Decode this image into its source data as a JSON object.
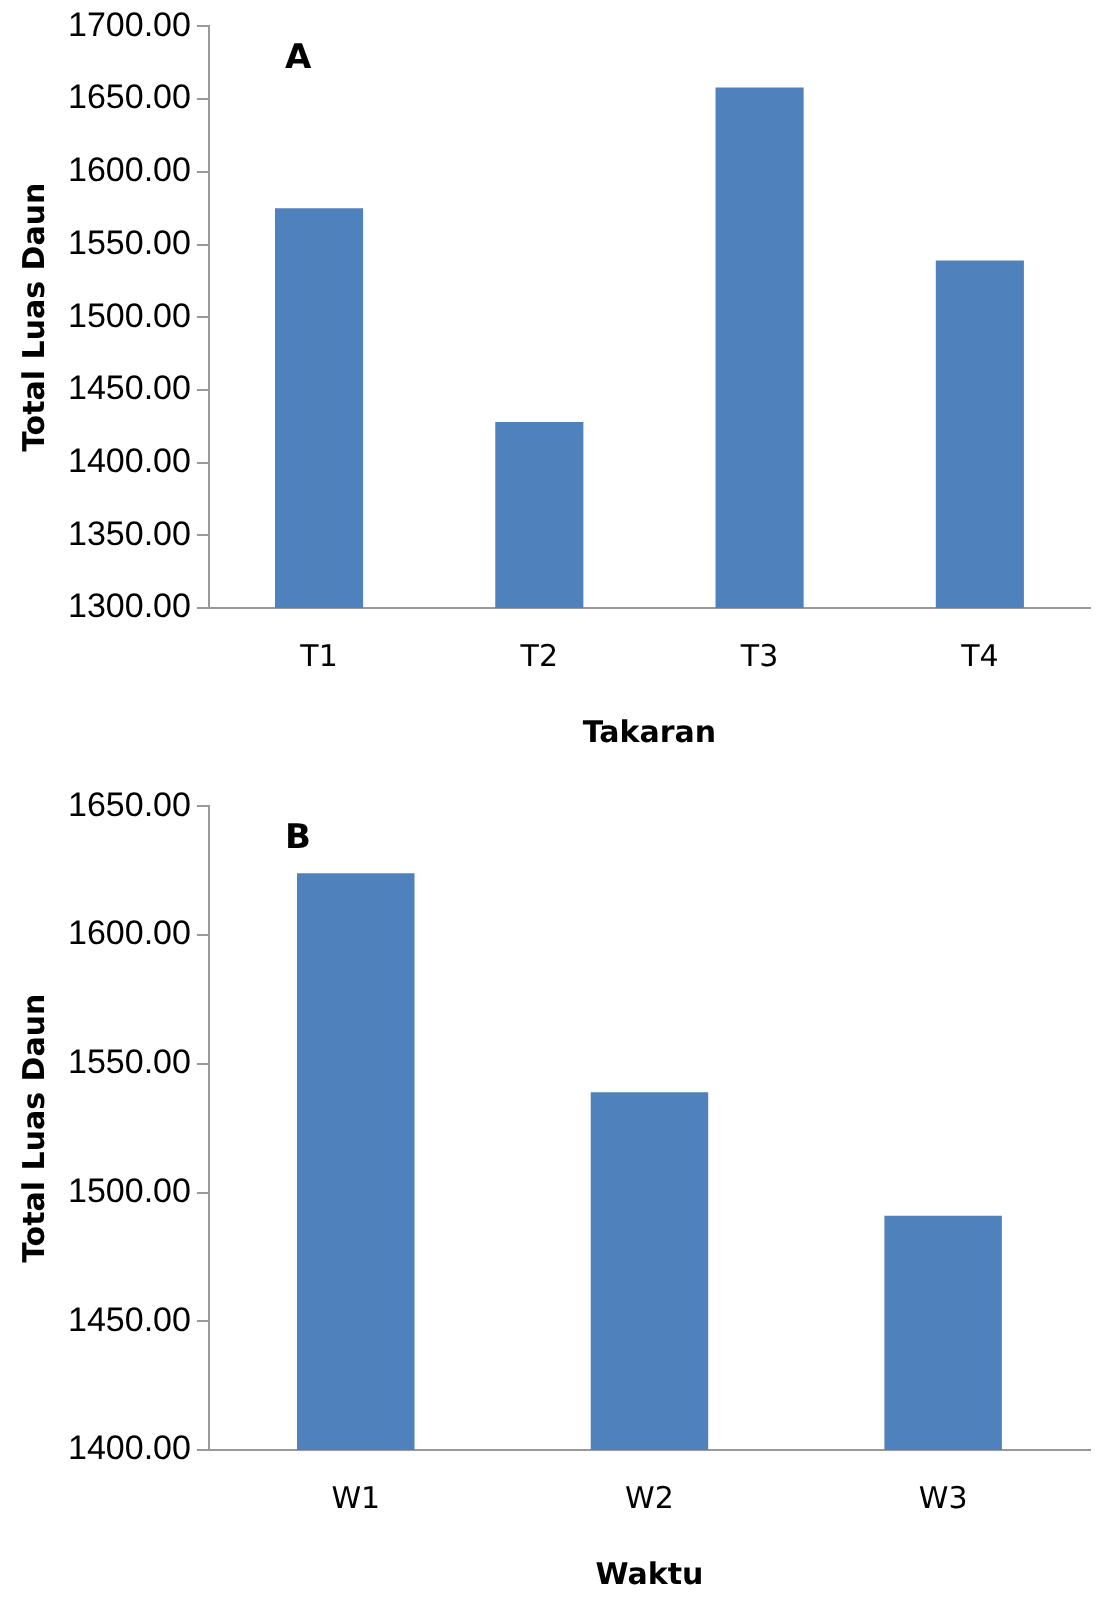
{
  "chart_data": [
    {
      "type": "bar",
      "annotations": [
        "A"
      ],
      "xlabel": "Takaran",
      "ylabel": "Total Luas Daun",
      "categories": [
        "T1",
        "T2",
        "T3",
        "T4"
      ],
      "values": [
        1575,
        1428,
        1658,
        1539
      ],
      "color": "#4f81bd",
      "ylim": [
        1300,
        1700
      ],
      "yticks": [
        {
          "value": 1300,
          "label": "1300.00"
        },
        {
          "value": 1350,
          "label": "1350.00"
        },
        {
          "value": 1400,
          "label": "1400.00"
        },
        {
          "value": 1450,
          "label": "1450.00"
        },
        {
          "value": 1500,
          "label": "1500.00"
        },
        {
          "value": 1550,
          "label": "1550.00"
        },
        {
          "value": 1600,
          "label": "1600.00"
        },
        {
          "value": 1650,
          "label": "1650.00"
        },
        {
          "value": 1700,
          "label": "1700.00"
        }
      ],
      "grid": false,
      "legend": false
    },
    {
      "type": "bar",
      "annotations": [
        "B"
      ],
      "xlabel": "Waktu",
      "ylabel": "Total Luas Daun",
      "categories": [
        "W1",
        "W2",
        "W3"
      ],
      "values": [
        1624,
        1539,
        1491
      ],
      "color": "#4f81bd",
      "ylim": [
        1400,
        1650
      ],
      "yticks": [
        {
          "value": 1400,
          "label": "1400.00"
        },
        {
          "value": 1450,
          "label": "1450.00"
        },
        {
          "value": 1500,
          "label": "1500.00"
        },
        {
          "value": 1550,
          "label": "1550.00"
        },
        {
          "value": 1600,
          "label": "1600.00"
        },
        {
          "value": 1650,
          "label": "1650.00"
        }
      ],
      "grid": false,
      "legend": false
    }
  ]
}
